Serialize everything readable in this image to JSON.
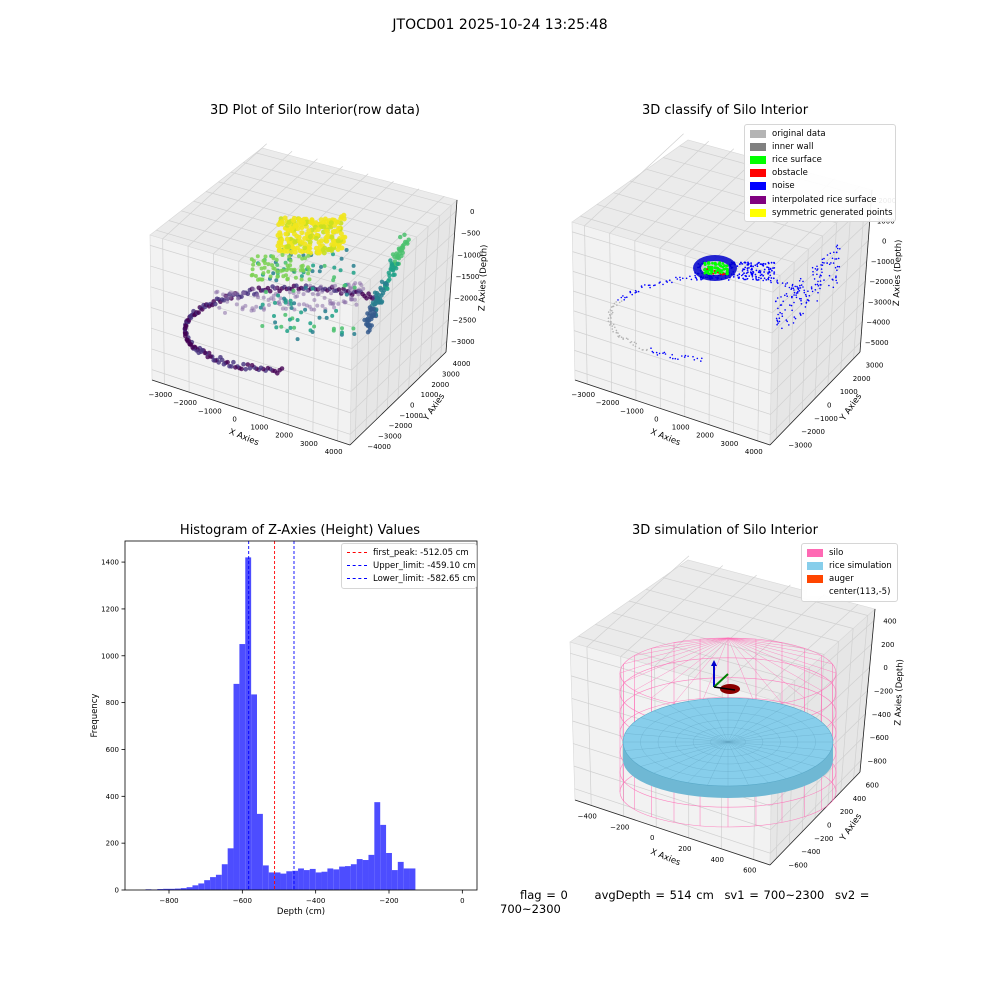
{
  "figure": {
    "suptitle": "JTOCD01 2025-10-24 13:25:48",
    "footer": {
      "flag": "flag = 0",
      "avg_depth": "avgDepth = 514 cm",
      "sv1": "sv1 = 700~2300",
      "sv2": "sv2 = 700~2300"
    }
  },
  "chart_data": [
    {
      "type": "scatter",
      "title": "3D Plot of Silo Interior(row data)",
      "projection": "3d",
      "xlabel": "X Axies",
      "ylabel": "Y Axies",
      "zlabel": "Z Axies (Depth)",
      "xticks": [
        "−3000",
        "−2000",
        "−1000",
        "0",
        "1000",
        "2000",
        "3000",
        "4000"
      ],
      "yticks": [
        "−4000",
        "−3000",
        "−2000",
        "−1000",
        "0",
        "1000",
        "2000",
        "3000",
        "4000"
      ],
      "zticks": [
        "−3000",
        "−2500",
        "−2000",
        "−1500",
        "−1000",
        "−500",
        "0"
      ],
      "xlim": [
        -3500,
        4500
      ],
      "ylim": [
        -4200,
        4200
      ],
      "zlim": [
        -3300,
        100
      ],
      "colormap": "viridis",
      "grid": true
    },
    {
      "type": "scatter",
      "title": "3D classify of Silo Interior",
      "projection": "3d",
      "xlabel": "X Axies",
      "ylabel": "Y Axies",
      "zlabel": "Z Axies (Depth)",
      "xticks": [
        "−3000",
        "−2000",
        "−1000",
        "0",
        "1000",
        "2000",
        "3000",
        "4000"
      ],
      "yticks": [
        "−3000",
        "−2000",
        "−1000",
        "0",
        "1000",
        "2000",
        "3000"
      ],
      "zticks": [
        "−5000",
        "−4000",
        "−3000",
        "−2000",
        "−1000",
        "0",
        "1000",
        "2000"
      ],
      "xlim": [
        -3500,
        4500
      ],
      "ylim": [
        -3500,
        3500
      ],
      "zlim": [
        -5300,
        2300
      ],
      "legend_position": "top-right",
      "legend": [
        {
          "label": "original data",
          "color": "#b4b4b4"
        },
        {
          "label": "inner wall",
          "color": "#808080"
        },
        {
          "label": "rice surface",
          "color": "#00ff00"
        },
        {
          "label": "obstacle",
          "color": "#ff0000"
        },
        {
          "label": "noise",
          "color": "#0000ff"
        },
        {
          "label": "interpolated rice surface",
          "color": "#800080"
        },
        {
          "label": "symmetric generated points",
          "color": "#ffff00"
        }
      ],
      "grid": true
    },
    {
      "type": "bar",
      "title": "Histogram of Z-Axies (Height) Values",
      "xlabel": "Depth (cm)",
      "ylabel": "Frequency",
      "xlim": [
        -920,
        40
      ],
      "ylim": [
        0,
        1490
      ],
      "xticks": [
        -800,
        -600,
        -400,
        -200,
        0
      ],
      "yticks": [
        0,
        200,
        400,
        600,
        800,
        1000,
        1200,
        1400
      ],
      "bar_color": "#4d4dff",
      "bin_start": -880,
      "bin_width": 16,
      "values": [
        0,
        3,
        2,
        4,
        5,
        5,
        6,
        8,
        12,
        20,
        28,
        42,
        55,
        65,
        110,
        178,
        880,
        1050,
        1420,
        835,
        325,
        105,
        75,
        75,
        70,
        80,
        82,
        92,
        85,
        90,
        75,
        78,
        92,
        88,
        100,
        102,
        110,
        132,
        128,
        150,
        375,
        278,
        158,
        85,
        120,
        92,
        92
      ],
      "lines": [
        {
          "label": "first_peak: -512.05 cm",
          "x": -512.05,
          "color": "#ff0000"
        },
        {
          "label": "Upper_limit: -459.10 cm",
          "x": -459.1,
          "color": "#0000ff"
        },
        {
          "label": "Lower_limit: -582.65 cm",
          "x": -582.65,
          "color": "#0000ff"
        }
      ],
      "legend_position": "top-right"
    },
    {
      "type": "scatter",
      "title": "3D simulation of Silo Interior",
      "projection": "3d",
      "xlabel": "X Axies",
      "ylabel": "Y Axies",
      "zlabel": "Z Axies (Depth)",
      "xticks": [
        "−400",
        "−200",
        "0",
        "200",
        "400",
        "600"
      ],
      "yticks": [
        "−600",
        "−400",
        "−200",
        "0",
        "200",
        "400",
        "600"
      ],
      "zticks": [
        "−800",
        "−600",
        "−400",
        "−200",
        "0",
        "200",
        "400"
      ],
      "xlim": [
        -500,
        700
      ],
      "ylim": [
        -700,
        700
      ],
      "zlim": [
        -900,
        450
      ],
      "legend_position": "top-right",
      "legend": [
        {
          "label": "silo",
          "color": "#ff69b4"
        },
        {
          "label": "rice simulation",
          "color": "#87ceeb"
        },
        {
          "label": "auger",
          "color": "#ff4500"
        },
        {
          "label": "center(113,-5)",
          "color": "#ffffff"
        }
      ],
      "grid": true
    }
  ]
}
